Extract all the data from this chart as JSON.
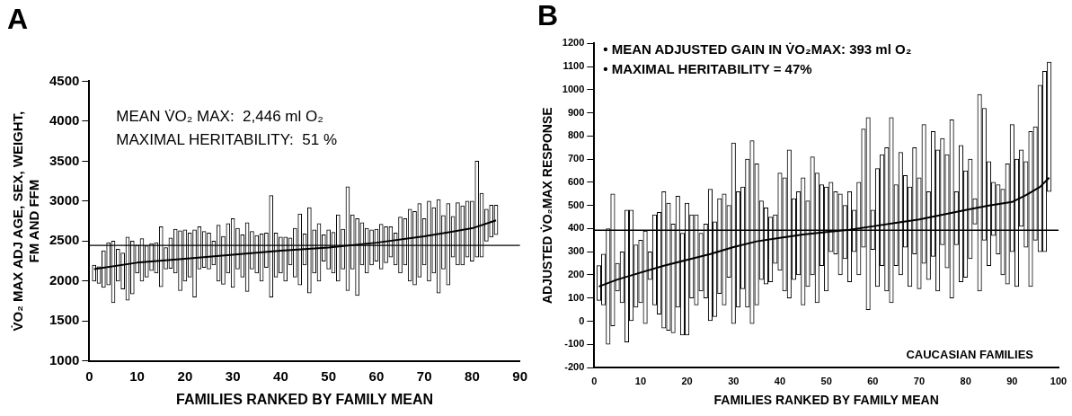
{
  "chart_data": [
    {
      "type": "bar",
      "title": "A",
      "xlabel": "FAMILIES RANKED BY FAMILY MEAN",
      "ylabel": "V̇O₂ MAX ADJ AGE, SEX, WEIGHT, FM AND FFM",
      "annotations": [
        "MEAN V̇O₂ MAX:  2,446 ml O₂",
        "MAXIMAL HERITABILITY:  51 %"
      ],
      "xlim": [
        0,
        90
      ],
      "xticks": [
        0,
        10,
        20,
        30,
        40,
        50,
        60,
        70,
        80,
        90
      ],
      "ylim": [
        1000,
        4500
      ],
      "yticks": [
        1000,
        1500,
        2000,
        2500,
        3000,
        3500,
        4000,
        4500
      ],
      "grid": false,
      "legend": false,
      "marker": "none",
      "ref_lines": [
        {
          "axis": "y",
          "value": 2446,
          "color": "#000000"
        }
      ],
      "series": [
        {
          "color": "#ffffff",
          "x": [
            1,
            2,
            3,
            4,
            5,
            6,
            7,
            8,
            9,
            10,
            11,
            12,
            13,
            14,
            15,
            16,
            17,
            18,
            19,
            20,
            21,
            22,
            23,
            24,
            25,
            26,
            27,
            28,
            29,
            30,
            31,
            32,
            33,
            34,
            35,
            36,
            37,
            38,
            39,
            40,
            41,
            42,
            43,
            44,
            45,
            46,
            47,
            48,
            49,
            50,
            51,
            52,
            53,
            54,
            55,
            56,
            57,
            58,
            59,
            60,
            61,
            62,
            63,
            64,
            65,
            66,
            67,
            68,
            69,
            70,
            71,
            72,
            73,
            74,
            75,
            76,
            77,
            78,
            79,
            80,
            81,
            82,
            83,
            84,
            85
          ],
          "base": [
            2000,
            1970,
            1920,
            1950,
            1730,
            2000,
            1900,
            1760,
            1840,
            2100,
            2000,
            2050,
            2130,
            2100,
            1930,
            2150,
            2160,
            2100,
            1880,
            2000,
            2050,
            1800,
            2150,
            2170,
            2150,
            2200,
            2000,
            1960,
            2100,
            1920,
            2150,
            2050,
            1870,
            2150,
            2100,
            2000,
            2170,
            1800,
            2050,
            2100,
            2000,
            2200,
            2050,
            1950,
            2200,
            1850,
            2100,
            2000,
            2250,
            2150,
            2100,
            2000,
            2150,
            1880,
            2150,
            1820,
            2200,
            2100,
            2200,
            2250,
            2150,
            2230,
            2300,
            2200,
            2100,
            2200,
            2000,
            1950,
            2050,
            2200,
            2000,
            2100,
            1850,
            2150,
            1950,
            2300,
            2200,
            2200,
            2300,
            2250,
            2300,
            2300,
            2500,
            2550,
            2580
          ],
          "values": [
            200,
            210,
            460,
            530,
            770,
            400,
            450,
            790,
            660,
            350,
            530,
            390,
            340,
            380,
            750,
            270,
            380,
            550,
            750,
            640,
            550,
            840,
            530,
            450,
            450,
            300,
            700,
            600,
            620,
            860,
            510,
            530,
            860,
            470,
            470,
            590,
            430,
            1270,
            550,
            450,
            550,
            340,
            610,
            890,
            390,
            1070,
            540,
            720,
            330,
            490,
            510,
            830,
            500,
            1300,
            680,
            960,
            530,
            560,
            440,
            400,
            560,
            450,
            380,
            400,
            700,
            580,
            900,
            920,
            920,
            580,
            1000,
            820,
            1170,
            670,
            1020,
            510,
            780,
            740,
            700,
            750,
            1200,
            800,
            400,
            400,
            370
          ]
        },
        {
          "type": "line",
          "color": "#000000",
          "x": [
            1,
            10,
            20,
            30,
            40,
            50,
            60,
            70,
            80,
            85
          ],
          "values": [
            2150,
            2230,
            2280,
            2330,
            2380,
            2420,
            2480,
            2560,
            2660,
            2760
          ]
        }
      ]
    },
    {
      "type": "bar",
      "title": "B",
      "xlabel": "FAMILIES RANKED BY FAMILY MEAN",
      "ylabel": "ADJUSTED V̇O₂MAX RESPONSE",
      "subtitle": "CAUCASIAN FAMILIES",
      "annotations": [
        "• MEAN ADJUSTED GAIN IN V̇O₂MAX: 393 ml O₂",
        "• MAXIMAL HERITABILITY = 47%"
      ],
      "xlim": [
        0,
        100
      ],
      "xticks": [
        0,
        10,
        20,
        30,
        40,
        50,
        60,
        70,
        80,
        90,
        100
      ],
      "ylim": [
        -200,
        1200
      ],
      "yticks": [
        -200,
        -100,
        0,
        100,
        200,
        300,
        400,
        500,
        600,
        700,
        800,
        900,
        1000,
        1100,
        1200
      ],
      "grid": false,
      "legend": false,
      "marker": "none",
      "ref_lines": [
        {
          "axis": "y",
          "value": 393,
          "color": "#000000"
        }
      ],
      "series": [
        {
          "color": "#ffffff",
          "x": [
            1,
            2,
            3,
            4,
            5,
            6,
            7,
            8,
            9,
            10,
            11,
            12,
            13,
            14,
            15,
            16,
            17,
            18,
            19,
            20,
            21,
            22,
            23,
            24,
            25,
            26,
            27,
            28,
            29,
            30,
            31,
            32,
            33,
            34,
            35,
            36,
            37,
            38,
            39,
            40,
            41,
            42,
            43,
            44,
            45,
            46,
            47,
            48,
            49,
            50,
            51,
            52,
            53,
            54,
            55,
            56,
            57,
            58,
            59,
            60,
            61,
            62,
            63,
            64,
            65,
            66,
            67,
            68,
            69,
            70,
            71,
            72,
            73,
            74,
            75,
            76,
            77,
            78,
            79,
            80,
            81,
            82,
            83,
            84,
            85,
            86,
            87,
            88,
            89,
            90,
            91,
            92,
            93,
            94,
            95,
            96,
            97,
            98
          ],
          "base": [
            90,
            70,
            -100,
            -20,
            130,
            80,
            -90,
            0,
            60,
            80,
            -10,
            180,
            70,
            30,
            -30,
            -40,
            -50,
            60,
            -60,
            -60,
            100,
            70,
            130,
            100,
            0,
            20,
            120,
            70,
            190,
            -10,
            60,
            140,
            60,
            -10,
            70,
            180,
            160,
            170,
            250,
            220,
            130,
            100,
            180,
            200,
            70,
            150,
            200,
            80,
            240,
            130,
            300,
            290,
            200,
            270,
            170,
            300,
            200,
            320,
            50,
            310,
            150,
            240,
            130,
            80,
            240,
            200,
            320,
            150,
            290,
            140,
            250,
            180,
            280,
            130,
            330,
            230,
            100,
            330,
            170,
            190,
            270,
            420,
            130,
            350,
            240,
            370,
            290,
            200,
            160,
            300,
            150,
            410,
            320,
            150,
            350,
            300,
            300,
            560
          ],
          "values": [
            150,
            220,
            500,
            570,
            120,
            220,
            570,
            480,
            270,
            270,
            400,
            120,
            390,
            440,
            590,
            550,
            470,
            480,
            440,
            570,
            360,
            390,
            250,
            320,
            570,
            410,
            410,
            480,
            310,
            780,
            500,
            440,
            640,
            790,
            610,
            340,
            330,
            280,
            210,
            420,
            490,
            640,
            350,
            360,
            550,
            370,
            510,
            560,
            350,
            450,
            300,
            270,
            350,
            230,
            390,
            180,
            400,
            510,
            830,
            170,
            510,
            480,
            620,
            800,
            350,
            530,
            310,
            430,
            460,
            480,
            600,
            380,
            540,
            610,
            460,
            490,
            770,
            230,
            590,
            460,
            430,
            110,
            850,
            570,
            450,
            230,
            300,
            370,
            520,
            550,
            550,
            330,
            370,
            670,
            490,
            720,
            780,
            560
          ]
        },
        {
          "type": "line",
          "color": "#000000",
          "x": [
            1,
            5,
            10,
            15,
            20,
            25,
            30,
            35,
            40,
            45,
            50,
            55,
            60,
            65,
            70,
            75,
            80,
            85,
            90,
            93,
            96,
            98
          ],
          "values": [
            150,
            180,
            210,
            240,
            265,
            290,
            320,
            345,
            360,
            375,
            385,
            395,
            410,
            425,
            440,
            460,
            480,
            500,
            515,
            545,
            580,
            620
          ]
        }
      ]
    }
  ]
}
